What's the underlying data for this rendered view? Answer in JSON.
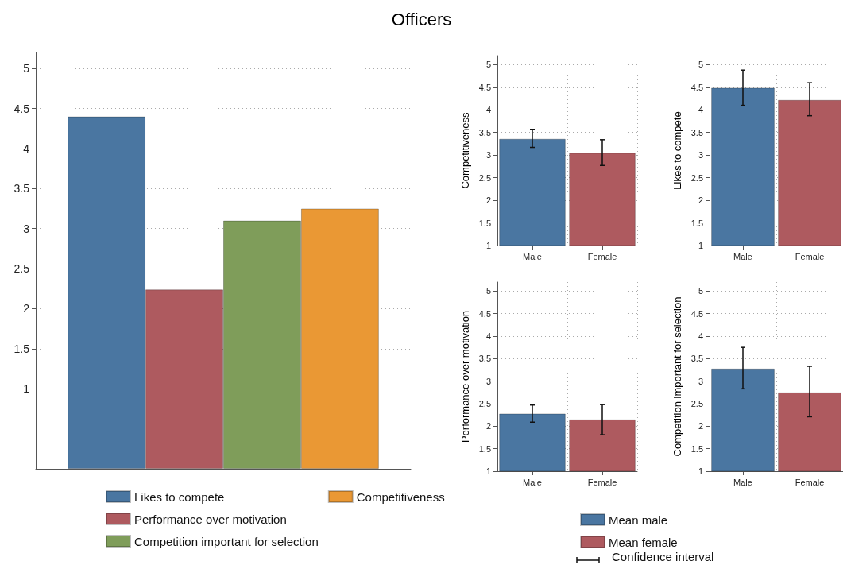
{
  "chart_data": [
    {
      "type": "bar",
      "title": "Officers",
      "categories": [
        null
      ],
      "series": [
        {
          "name": "Likes to compete",
          "color": "#4a76a1",
          "values": [
            4.4
          ]
        },
        {
          "name": "Performance over motivation",
          "color": "#ae5a5f",
          "values": [
            2.24
          ]
        },
        {
          "name": "Competition important for selection",
          "color": "#7f9d5a",
          "values": [
            3.1
          ]
        },
        {
          "name": "Competitiveness",
          "color": "#ea9834",
          "values": [
            3.25
          ]
        }
      ],
      "ylim": [
        0,
        5.2
      ],
      "yticks": [
        1,
        1.5,
        2,
        2.5,
        3,
        3.5,
        4,
        4.5,
        5
      ],
      "grid": "y",
      "legend": "bottom"
    },
    {
      "type": "bar",
      "ylabel": "Competitiveness",
      "categories": [
        "Male",
        "Female"
      ],
      "series": [
        {
          "color": "#4a76a1",
          "values": [
            3.36,
            null
          ],
          "errors": [
            [
              3.17,
              3.57
            ],
            null
          ]
        },
        {
          "color": "#ae5a5f",
          "values": [
            null,
            3.05
          ],
          "errors": [
            null,
            [
              2.77,
              3.34
            ]
          ]
        }
      ],
      "ylim": [
        1,
        5.2
      ],
      "yticks": [
        1,
        1.5,
        2,
        2.5,
        3,
        3.5,
        4,
        4.5,
        5
      ],
      "grid": true,
      "legend": false
    },
    {
      "type": "bar",
      "ylabel": "Likes to compete",
      "categories": [
        "Male",
        "Female"
      ],
      "series": [
        {
          "color": "#4a76a1",
          "values": [
            4.49,
            null
          ],
          "errors": [
            [
              4.1,
              4.88
            ],
            null
          ]
        },
        {
          "color": "#ae5a5f",
          "values": [
            null,
            4.22
          ],
          "errors": [
            null,
            [
              3.87,
              4.6
            ]
          ]
        }
      ],
      "ylim": [
        1,
        5.2
      ],
      "yticks": [
        1,
        1.5,
        2,
        2.5,
        3,
        3.5,
        4,
        4.5,
        5
      ],
      "grid": true,
      "legend": false
    },
    {
      "type": "bar",
      "ylabel": "Performance over motivation",
      "categories": [
        "Male",
        "Female"
      ],
      "series": [
        {
          "name": "Mean male",
          "color": "#4a76a1",
          "values": [
            2.28,
            null
          ],
          "errors": [
            [
              2.09,
              2.47
            ],
            null
          ]
        },
        {
          "name": "Mean female",
          "color": "#ae5a5f",
          "values": [
            null,
            2.15
          ],
          "errors": [
            null,
            [
              1.81,
              2.48
            ]
          ]
        }
      ],
      "ylim": [
        1,
        5.2
      ],
      "yticks": [
        1,
        1.5,
        2,
        2.5,
        3,
        3.5,
        4,
        4.5,
        5
      ],
      "grid": true,
      "legend": "bottom",
      "annotations": [
        "Confidence interval"
      ]
    },
    {
      "type": "bar",
      "ylabel": "Competition important for selection",
      "categories": [
        "Male",
        "Female"
      ],
      "series": [
        {
          "color": "#4a76a1",
          "values": [
            3.28,
            null
          ],
          "errors": [
            [
              2.83,
              3.75
            ],
            null
          ]
        },
        {
          "color": "#ae5a5f",
          "values": [
            null,
            2.75
          ],
          "errors": [
            null,
            [
              2.21,
              3.33
            ]
          ]
        }
      ],
      "ylim": [
        1,
        5.2
      ],
      "yticks": [
        1,
        1.5,
        2,
        2.5,
        3,
        3.5,
        4,
        4.5,
        5
      ],
      "grid": true,
      "legend": false
    }
  ]
}
